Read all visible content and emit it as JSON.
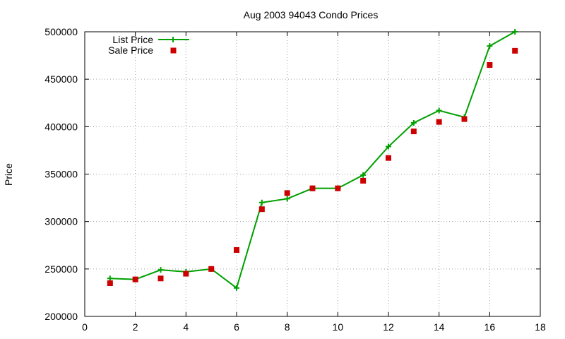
{
  "chart_data": {
    "type": "line",
    "title": "Aug 2003 94043 Condo Prices",
    "xlabel": "",
    "ylabel": "Price",
    "xlim": [
      0,
      18
    ],
    "ylim": [
      200000,
      500000
    ],
    "x_ticks": [
      0,
      2,
      4,
      6,
      8,
      10,
      12,
      14,
      16,
      18
    ],
    "y_ticks": [
      200000,
      250000,
      300000,
      350000,
      400000,
      450000,
      500000
    ],
    "grid": true,
    "legend_position": "top-left",
    "series": [
      {
        "name": "List Price",
        "style": "line-with-plus-markers",
        "color": "#00a000",
        "x": [
          1,
          2,
          3,
          4,
          5,
          6,
          7,
          8,
          9,
          10,
          11,
          12,
          13,
          14,
          15,
          16,
          17
        ],
        "y": [
          240000,
          239000,
          249000,
          247000,
          250000,
          230000,
          320000,
          324000,
          335000,
          335000,
          349000,
          379000,
          404000,
          417000,
          410000,
          485000,
          500000
        ]
      },
      {
        "name": "Sale Price",
        "style": "square-points",
        "color": "#cc0000",
        "x": [
          1,
          2,
          3,
          4,
          5,
          6,
          7,
          8,
          9,
          10,
          11,
          12,
          13,
          14,
          15,
          16,
          17
        ],
        "y": [
          235000,
          239000,
          240000,
          245000,
          250000,
          270000,
          313000,
          330000,
          335000,
          335000,
          343000,
          367000,
          395000,
          405000,
          408000,
          465000,
          480000
        ]
      }
    ]
  }
}
